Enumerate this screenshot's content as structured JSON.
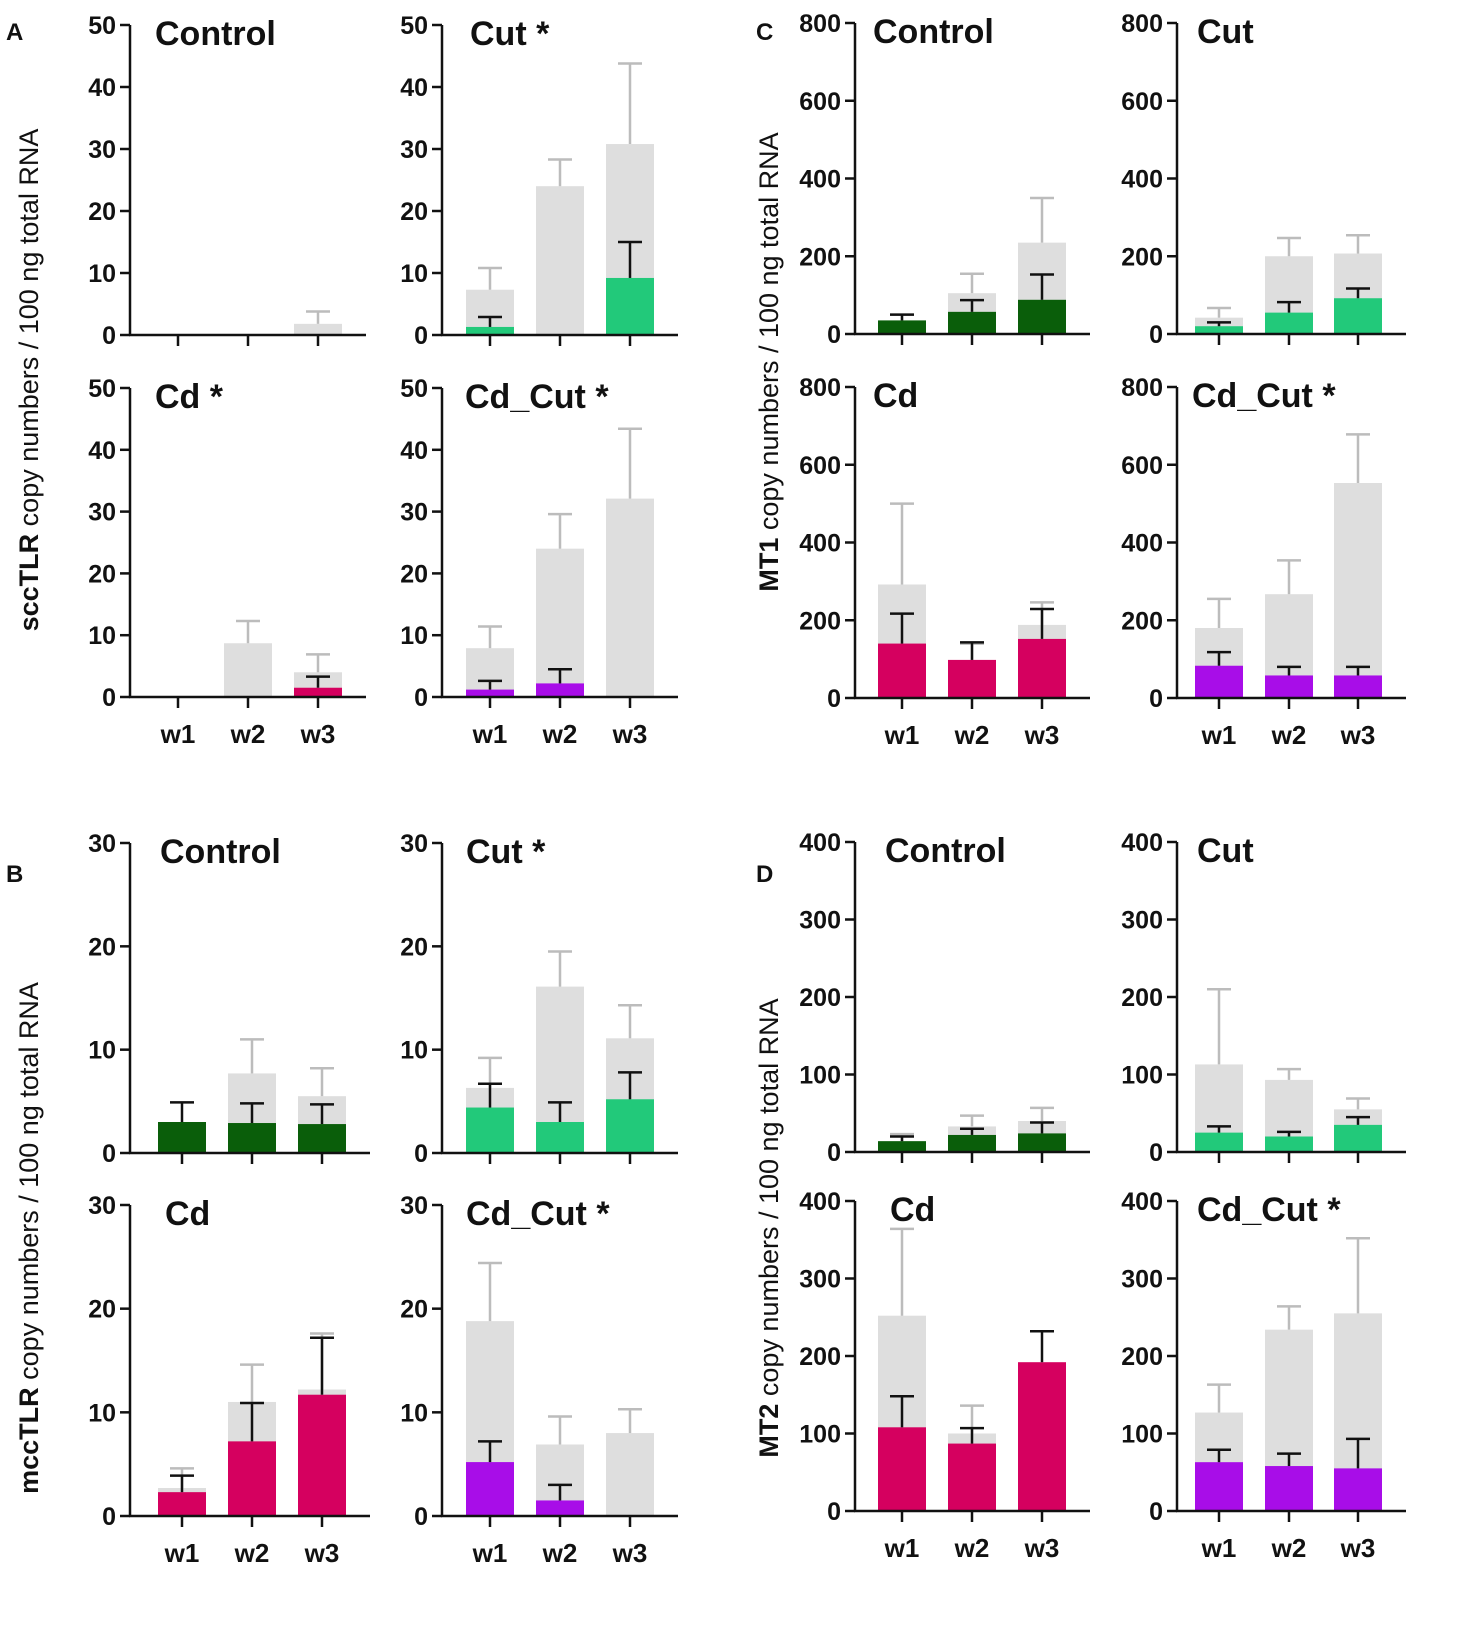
{
  "figure": {
    "panel_letters": [
      "A",
      "B",
      "C",
      "D"
    ],
    "x_categories": [
      "w1",
      "w2",
      "w3"
    ],
    "ylabels": [
      {
        "bold": "sccTLR",
        "rest": " copy numbers / 100 ng total RNA"
      },
      {
        "bold": "mccTLR",
        "rest": " copy numbers / 100 ng total RNA"
      },
      {
        "bold": "MT1",
        "rest": " copy numbers / 100 ng total RNA"
      },
      {
        "bold": "MT2",
        "rest": " copy numbers / 100 ng total RNA"
      }
    ]
  },
  "colors": {
    "grey": "#dedede",
    "grey_err": "#bcbcbc",
    "dark_green": "#0a5e0a",
    "light_green": "#22c97a",
    "crimson": "#d5005f",
    "purple": "#a80de8",
    "axis": "#111111"
  },
  "chart_data": [
    {
      "type": "bar",
      "panel": "A",
      "title": "Control",
      "ylim": [
        0,
        50
      ],
      "yticks": [
        0,
        10,
        20,
        30,
        40,
        50
      ],
      "categories": [
        "w1",
        "w2",
        "w3"
      ],
      "show_xlabels": false,
      "series": [
        {
          "name": "grey",
          "color": "grey",
          "values": [
            0,
            0,
            1.8
          ],
          "errors": [
            0,
            0,
            2
          ]
        },
        {
          "name": "colored",
          "color": "light_green",
          "values": [
            0,
            0,
            0
          ],
          "errors": [
            0,
            0,
            0
          ]
        }
      ]
    },
    {
      "type": "bar",
      "panel": "A",
      "title": "Cut *",
      "ylim": [
        0,
        50
      ],
      "yticks": [
        0,
        10,
        20,
        30,
        40,
        50
      ],
      "categories": [
        "w1",
        "w2",
        "w3"
      ],
      "show_xlabels": false,
      "series": [
        {
          "name": "grey",
          "color": "grey",
          "values": [
            7.3,
            24,
            30.8
          ],
          "errors": [
            3.5,
            4.3,
            13
          ]
        },
        {
          "name": "colored",
          "color": "light_green",
          "values": [
            1.3,
            0,
            9.2
          ],
          "errors": [
            1.6,
            0,
            5.8
          ]
        }
      ]
    },
    {
      "type": "bar",
      "panel": "A",
      "title": "Cd *",
      "ylim": [
        0,
        50
      ],
      "yticks": [
        0,
        10,
        20,
        30,
        40,
        50
      ],
      "categories": [
        "w1",
        "w2",
        "w3"
      ],
      "show_xlabels": true,
      "series": [
        {
          "name": "grey",
          "color": "grey",
          "values": [
            0,
            8.7,
            4
          ],
          "errors": [
            0,
            3.6,
            2.9
          ]
        },
        {
          "name": "colored",
          "color": "crimson",
          "values": [
            0,
            0,
            1.5
          ],
          "errors": [
            0,
            0,
            1.8
          ]
        }
      ]
    },
    {
      "type": "bar",
      "panel": "A",
      "title": "Cd_Cut *",
      "ylim": [
        0,
        50
      ],
      "yticks": [
        0,
        10,
        20,
        30,
        40,
        50
      ],
      "categories": [
        "w1",
        "w2",
        "w3"
      ],
      "show_xlabels": true,
      "series": [
        {
          "name": "grey",
          "color": "grey",
          "values": [
            7.9,
            24,
            32.1
          ],
          "errors": [
            3.5,
            5.6,
            11.3
          ]
        },
        {
          "name": "colored",
          "color": "purple",
          "values": [
            1.2,
            2.2,
            0
          ],
          "errors": [
            1.4,
            2.3,
            0
          ]
        }
      ]
    },
    {
      "type": "bar",
      "panel": "B",
      "title": "Control",
      "ylim": [
        0,
        30
      ],
      "yticks": [
        0,
        10,
        20,
        30
      ],
      "categories": [
        "w1",
        "w2",
        "w3"
      ],
      "show_xlabels": false,
      "series": [
        {
          "name": "grey",
          "color": "grey",
          "values": [
            1.3,
            7.7,
            5.5
          ],
          "errors": [
            1.4,
            3.3,
            2.7
          ]
        },
        {
          "name": "colored",
          "color": "dark_green",
          "values": [
            3,
            2.9,
            2.8
          ],
          "errors": [
            1.9,
            1.9,
            1.9
          ]
        }
      ]
    },
    {
      "type": "bar",
      "panel": "B",
      "title": "Cut *",
      "ylim": [
        0,
        30
      ],
      "yticks": [
        0,
        10,
        20,
        30
      ],
      "categories": [
        "w1",
        "w2",
        "w3"
      ],
      "show_xlabels": false,
      "series": [
        {
          "name": "grey",
          "color": "grey",
          "values": [
            6.3,
            16.1,
            11.1
          ],
          "errors": [
            2.9,
            3.4,
            3.2
          ]
        },
        {
          "name": "colored",
          "color": "light_green",
          "values": [
            4.4,
            3,
            5.2
          ],
          "errors": [
            2.3,
            1.9,
            2.6
          ]
        }
      ]
    },
    {
      "type": "bar",
      "panel": "B",
      "title": "Cd",
      "ylim": [
        0,
        30
      ],
      "yticks": [
        0,
        10,
        20,
        30
      ],
      "categories": [
        "w1",
        "w2",
        "w3"
      ],
      "show_xlabels": true,
      "series": [
        {
          "name": "grey",
          "color": "grey",
          "values": [
            2.7,
            11,
            12.2
          ],
          "errors": [
            1.9,
            3.6,
            5.4
          ]
        },
        {
          "name": "colored",
          "color": "crimson",
          "values": [
            2.3,
            7.2,
            11.7
          ],
          "errors": [
            1.6,
            3.7,
            5.5
          ]
        }
      ]
    },
    {
      "type": "bar",
      "panel": "B",
      "title": "Cd_Cut *",
      "ylim": [
        0,
        30
      ],
      "yticks": [
        0,
        10,
        20,
        30
      ],
      "categories": [
        "w1",
        "w2",
        "w3"
      ],
      "show_xlabels": true,
      "series": [
        {
          "name": "grey",
          "color": "grey",
          "values": [
            18.8,
            6.9,
            8
          ],
          "errors": [
            5.6,
            2.7,
            2.3
          ]
        },
        {
          "name": "colored",
          "color": "purple",
          "values": [
            5.2,
            1.5,
            0
          ],
          "errors": [
            2,
            1.5,
            0
          ]
        }
      ]
    },
    {
      "type": "bar",
      "panel": "C",
      "title": "Control",
      "ylim": [
        0,
        800
      ],
      "yticks": [
        0,
        200,
        400,
        600,
        800
      ],
      "categories": [
        "w1",
        "w2",
        "w3"
      ],
      "show_xlabels": false,
      "series": [
        {
          "name": "grey",
          "color": "grey",
          "values": [
            30,
            105,
            235
          ],
          "errors": [
            20,
            50,
            115
          ]
        },
        {
          "name": "colored",
          "color": "dark_green",
          "values": [
            35,
            57,
            88
          ],
          "errors": [
            15,
            30,
            65
          ]
        }
      ]
    },
    {
      "type": "bar",
      "panel": "C",
      "title": "Cut",
      "ylim": [
        0,
        800
      ],
      "yticks": [
        0,
        200,
        400,
        600,
        800
      ],
      "categories": [
        "w1",
        "w2",
        "w3"
      ],
      "show_xlabels": false,
      "series": [
        {
          "name": "grey",
          "color": "grey",
          "values": [
            42,
            200,
            207
          ],
          "errors": [
            25,
            47,
            47
          ]
        },
        {
          "name": "colored",
          "color": "light_green",
          "values": [
            20,
            55,
            92
          ],
          "errors": [
            10,
            27,
            25
          ]
        }
      ]
    },
    {
      "type": "bar",
      "panel": "C",
      "title": "Cd",
      "ylim": [
        0,
        800
      ],
      "yticks": [
        0,
        200,
        400,
        600,
        800
      ],
      "categories": [
        "w1",
        "w2",
        "w3"
      ],
      "show_xlabels": true,
      "series": [
        {
          "name": "grey",
          "color": "grey",
          "values": [
            292,
            95,
            188
          ],
          "errors": [
            208,
            45,
            58
          ]
        },
        {
          "name": "colored",
          "color": "crimson",
          "values": [
            140,
            98,
            152
          ],
          "errors": [
            77,
            45,
            77
          ]
        }
      ]
    },
    {
      "type": "bar",
      "panel": "C",
      "title": "Cd_Cut *",
      "ylim": [
        0,
        800
      ],
      "yticks": [
        0,
        200,
        400,
        600,
        800
      ],
      "categories": [
        "w1",
        "w2",
        "w3"
      ],
      "show_xlabels": true,
      "series": [
        {
          "name": "grey",
          "color": "grey",
          "values": [
            180,
            267,
            553
          ],
          "errors": [
            75,
            87,
            125
          ]
        },
        {
          "name": "colored",
          "color": "purple",
          "values": [
            83,
            58,
            58
          ],
          "errors": [
            35,
            22,
            22
          ]
        }
      ]
    },
    {
      "type": "bar",
      "panel": "D",
      "title": "Control",
      "ylim": [
        0,
        400
      ],
      "yticks": [
        0,
        100,
        200,
        300,
        400
      ],
      "categories": [
        "w1",
        "w2",
        "w3"
      ],
      "show_xlabels": false,
      "series": [
        {
          "name": "grey",
          "color": "grey",
          "values": [
            10,
            33,
            40
          ],
          "errors": [
            13,
            14,
            17
          ]
        },
        {
          "name": "colored",
          "color": "dark_green",
          "values": [
            14,
            22,
            24
          ],
          "errors": [
            6,
            8,
            14
          ]
        }
      ]
    },
    {
      "type": "bar",
      "panel": "D",
      "title": "Cut",
      "ylim": [
        0,
        400
      ],
      "yticks": [
        0,
        100,
        200,
        300,
        400
      ],
      "categories": [
        "w1",
        "w2",
        "w3"
      ],
      "show_xlabels": false,
      "series": [
        {
          "name": "grey",
          "color": "grey",
          "values": [
            113,
            93,
            55
          ],
          "errors": [
            97,
            14,
            14
          ]
        },
        {
          "name": "colored",
          "color": "light_green",
          "values": [
            25,
            20,
            35
          ],
          "errors": [
            8,
            6,
            10
          ]
        }
      ]
    },
    {
      "type": "bar",
      "panel": "D",
      "title": "Cd",
      "ylim": [
        0,
        400
      ],
      "yticks": [
        0,
        100,
        200,
        300,
        400
      ],
      "categories": [
        "w1",
        "w2",
        "w3"
      ],
      "show_xlabels": true,
      "series": [
        {
          "name": "grey",
          "color": "grey",
          "values": [
            252,
            100,
            131
          ],
          "errors": [
            112,
            36,
            31
          ]
        },
        {
          "name": "colored",
          "color": "crimson",
          "values": [
            108,
            87,
            192
          ],
          "errors": [
            40,
            20,
            40
          ]
        }
      ]
    },
    {
      "type": "bar",
      "panel": "D",
      "title": "Cd_Cut *",
      "ylim": [
        0,
        400
      ],
      "yticks": [
        0,
        100,
        200,
        300,
        400
      ],
      "categories": [
        "w1",
        "w2",
        "w3"
      ],
      "show_xlabels": true,
      "series": [
        {
          "name": "grey",
          "color": "grey",
          "values": [
            127,
            234,
            255
          ],
          "errors": [
            36,
            30,
            97
          ]
        },
        {
          "name": "colored",
          "color": "purple",
          "values": [
            63,
            58,
            55
          ],
          "errors": [
            16,
            16,
            38
          ]
        }
      ]
    }
  ]
}
